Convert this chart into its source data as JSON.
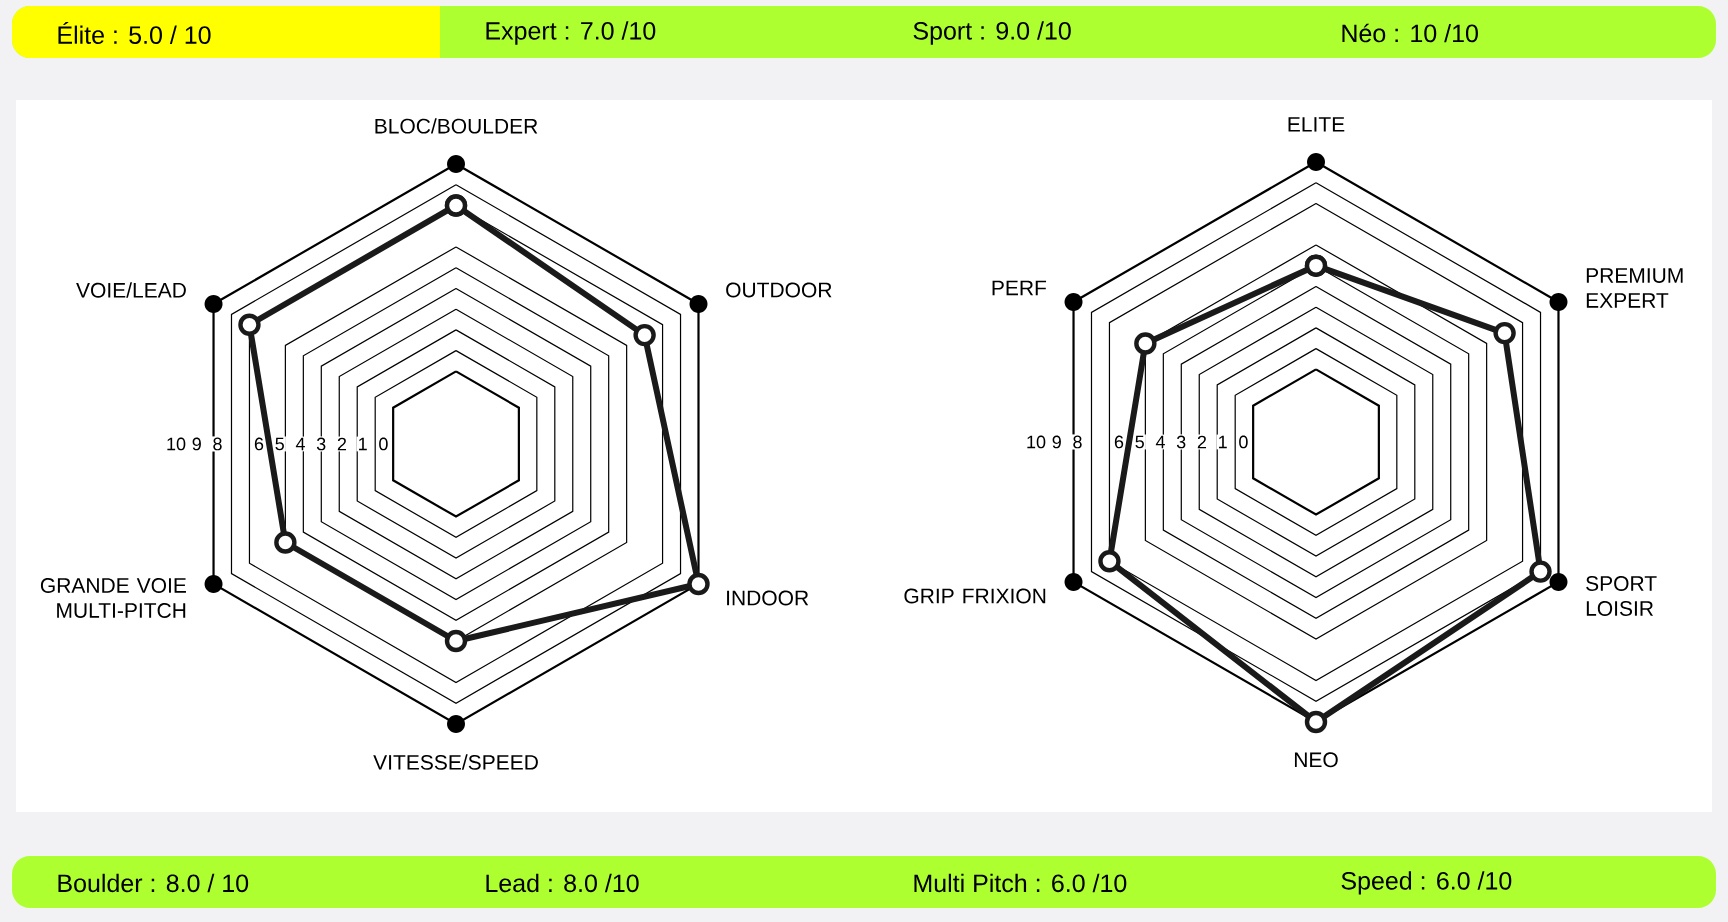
{
  "chart_data": [
    {
      "type": "other",
      "annotations": [
        "Élite : 5.0 / 10",
        "Expert : 7.0 /10",
        "Sport : 9.0 /10",
        "Néo : 10 /10"
      ]
    },
    {
      "type": "radar",
      "categories": [
        "BLOC/BOULDER",
        "OUTDOOR",
        "INDOOR",
        "VITESSE/SPEED",
        "GRANDE VOIE MULTI-PITCH",
        "VOIE/LEAD"
      ],
      "ylim": [
        -3.5,
        10
      ],
      "yticks": [
        0,
        1,
        2,
        3,
        4,
        5,
        6,
        8,
        9,
        10
      ],
      "grid": true,
      "marker": "circle",
      "series": [
        {
          "color": "#1a1a1a",
          "values": [
            8,
            7,
            10,
            6,
            6,
            8
          ]
        }
      ]
    },
    {
      "type": "radar",
      "categories": [
        "ELITE",
        "PREMIUM EXPERT",
        "SPORT LOISIR",
        "NEO",
        "GRIP FRIXION",
        "PERF"
      ],
      "ylim": [
        -3.5,
        10
      ],
      "yticks": [
        0,
        1,
        2,
        3,
        4,
        5,
        6,
        8,
        9,
        10
      ],
      "grid": true,
      "marker": "circle",
      "series": [
        {
          "color": "#1a1a1a",
          "values": [
            5,
            7,
            9,
            10,
            8,
            6
          ]
        }
      ]
    },
    {
      "type": "other",
      "annotations": [
        "Boulder : 8.0 / 10",
        "Lead : 8.0 /10",
        "Multi Pitch : 6.0 /10",
        "Speed : 6.0 /10"
      ]
    }
  ]
}
